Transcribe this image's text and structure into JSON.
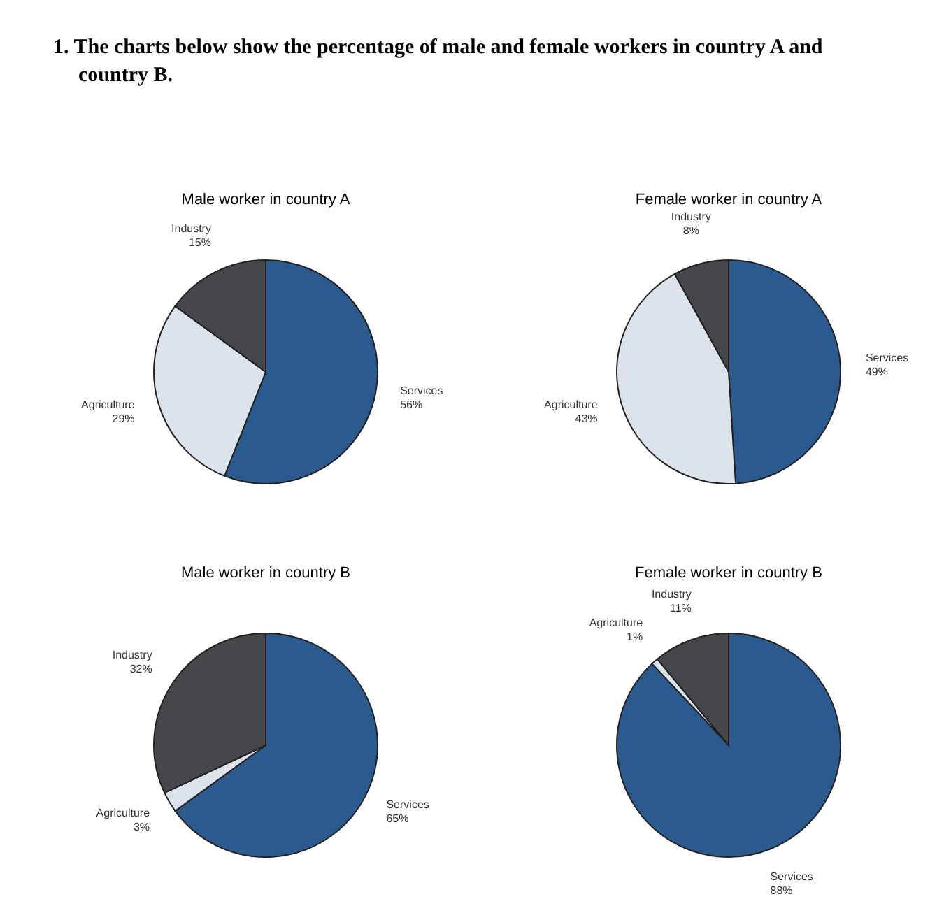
{
  "chart_data": [
    {
      "type": "pie",
      "title": "Male worker in country A",
      "annotations": [
        "1. The charts below show the percentage of male and female workers in country A and country B."
      ],
      "categories": [
        "Services",
        "Agriculture",
        "Industry"
      ],
      "values": [
        56,
        29,
        15
      ],
      "value_labels": [
        "56%",
        "29%",
        "15%"
      ],
      "colors": [
        "#2b5a8e",
        "#dde3ea",
        "#45474b"
      ]
    },
    {
      "type": "pie",
      "title": "Female worker in country A",
      "categories": [
        "Services",
        "Agriculture",
        "Industry"
      ],
      "values": [
        49,
        43,
        8
      ],
      "value_labels": [
        "49%",
        "43%",
        "8%"
      ],
      "colors": [
        "#2b5a8e",
        "#dde3ea",
        "#45474b"
      ]
    },
    {
      "type": "pie",
      "title": "Male worker in country B",
      "categories": [
        "Services",
        "Agriculture",
        "Industry"
      ],
      "values": [
        65,
        3,
        32
      ],
      "value_labels": [
        "65%",
        "3%",
        "32%"
      ],
      "colors": [
        "#2b5a8e",
        "#dde3ea",
        "#45474b"
      ]
    },
    {
      "type": "pie",
      "title": "Female worker in country B",
      "categories": [
        "Services",
        "Agriculture",
        "Industry"
      ],
      "values": [
        88,
        1,
        11
      ],
      "value_labels": [
        "88%",
        "1%",
        "11%"
      ],
      "colors": [
        "#2b5a8e",
        "#dde3ea",
        "#45474b"
      ]
    }
  ]
}
